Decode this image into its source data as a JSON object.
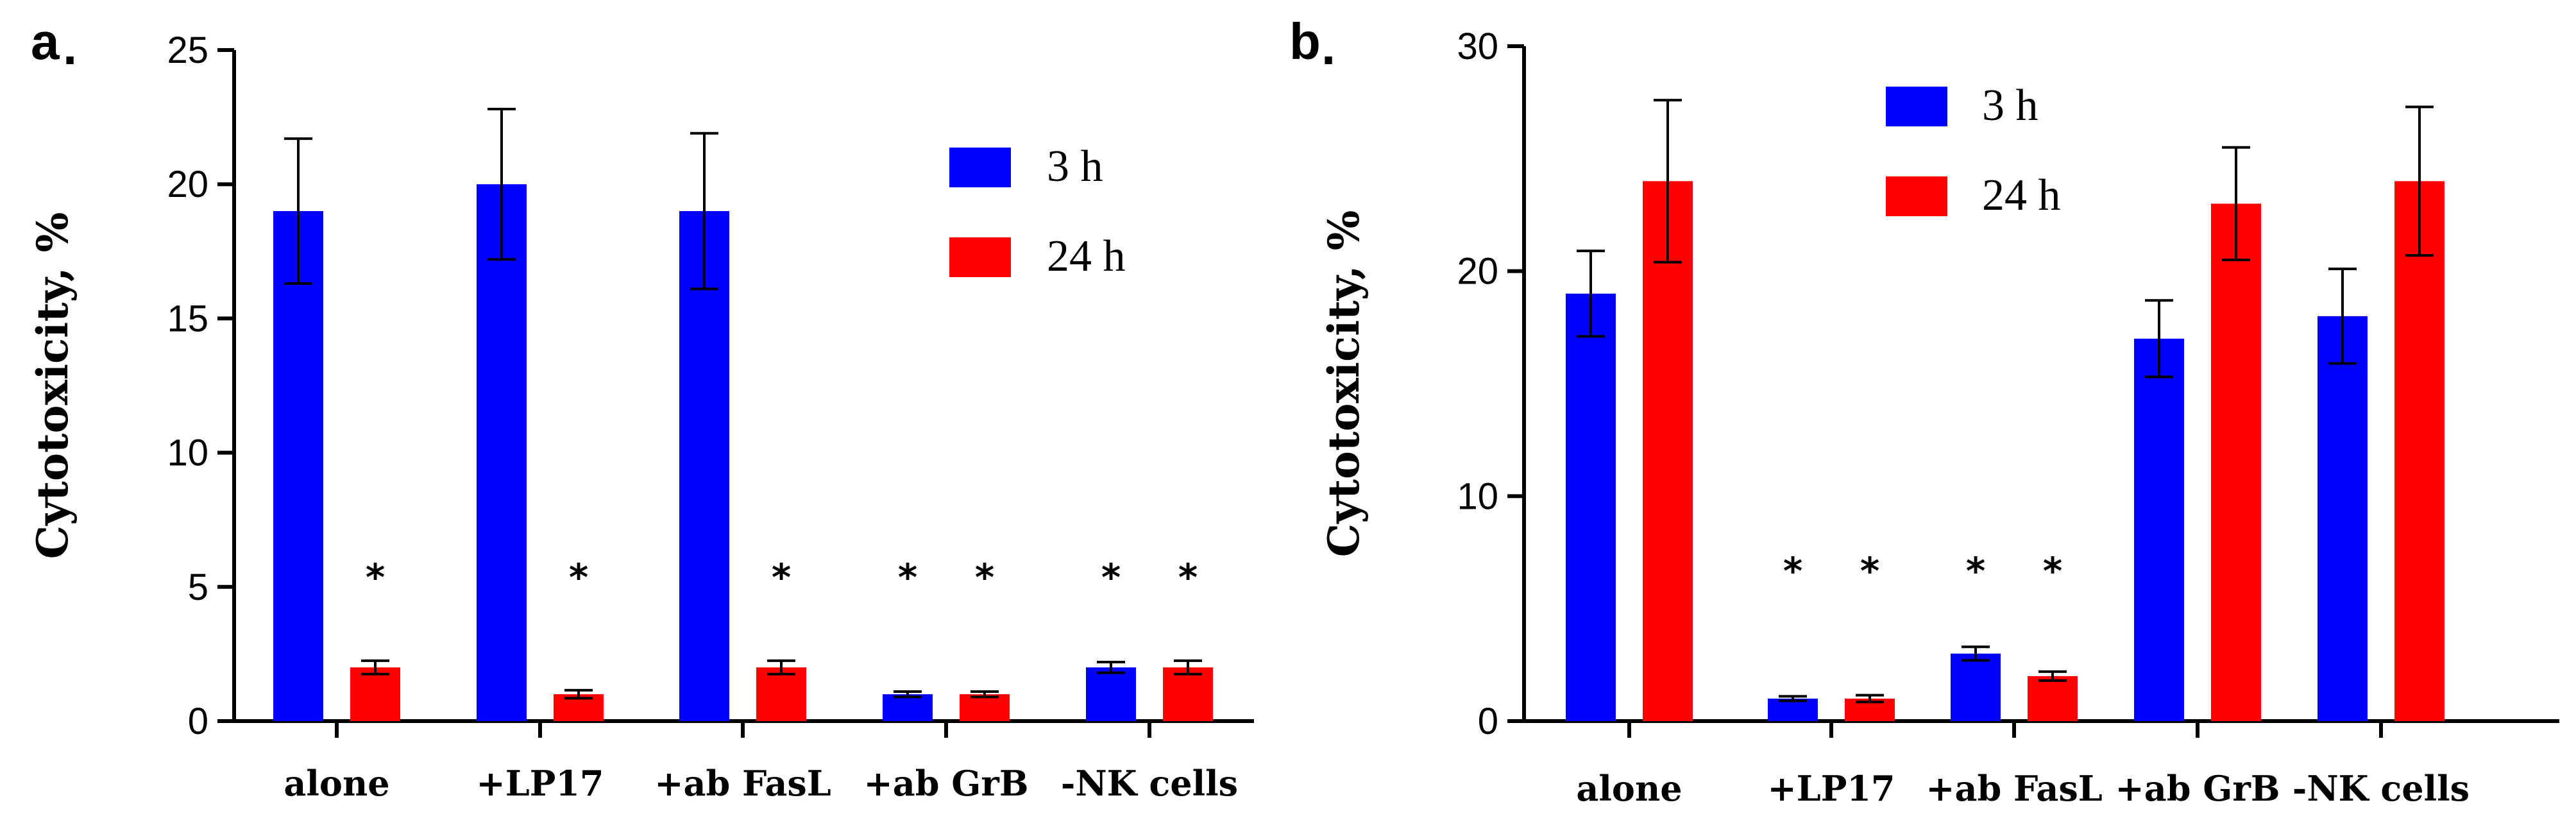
{
  "colors": {
    "series_3h": "#0000ff",
    "series_24h": "#ff0000",
    "axis": "#000000"
  },
  "chart_data": [
    {
      "type": "bar",
      "panel_label": "a",
      "panel_suffix": ".",
      "title": "",
      "xlabel": "",
      "ylabel": "Cytotoxicity, %",
      "ylim": [
        0,
        25
      ],
      "yticks": [
        0,
        5,
        10,
        15,
        20,
        25
      ],
      "categories": [
        "alone",
        "+LP17",
        "+ab FasL",
        "+ab GrB",
        "-NK cells"
      ],
      "legend_position": "top-right",
      "significance_marker": "*",
      "series": [
        {
          "name": "3 h",
          "values": [
            19,
            20,
            19,
            1,
            2
          ],
          "errors": [
            2.7,
            2.8,
            2.9,
            0.1,
            0.2
          ],
          "significant": [
            false,
            false,
            false,
            true,
            true
          ]
        },
        {
          "name": "24 h",
          "values": [
            2,
            1,
            2,
            1,
            2
          ],
          "errors": [
            0.25,
            0.15,
            0.25,
            0.1,
            0.25
          ],
          "significant": [
            true,
            true,
            true,
            true,
            true
          ]
        }
      ]
    },
    {
      "type": "bar",
      "panel_label": "b",
      "panel_suffix": ".",
      "title": "",
      "xlabel": "",
      "ylabel": "Cytotoxicity, %",
      "ylim": [
        0,
        30
      ],
      "yticks": [
        0,
        10,
        20,
        30
      ],
      "categories": [
        "alone",
        "+LP17",
        "+ab FasL",
        "+ab GrB",
        "-NK cells"
      ],
      "legend_position": "top-center",
      "significance_marker": "*",
      "series": [
        {
          "name": "3 h",
          "values": [
            19,
            1,
            3,
            17,
            18
          ],
          "errors": [
            1.9,
            0.1,
            0.3,
            1.7,
            2.1
          ],
          "significant": [
            false,
            true,
            true,
            false,
            false
          ]
        },
        {
          "name": "24 h",
          "values": [
            24,
            1,
            2,
            23,
            24
          ],
          "errors": [
            3.6,
            0.15,
            0.2,
            2.5,
            3.3
          ],
          "significant": [
            false,
            true,
            true,
            false,
            false
          ]
        }
      ]
    }
  ]
}
